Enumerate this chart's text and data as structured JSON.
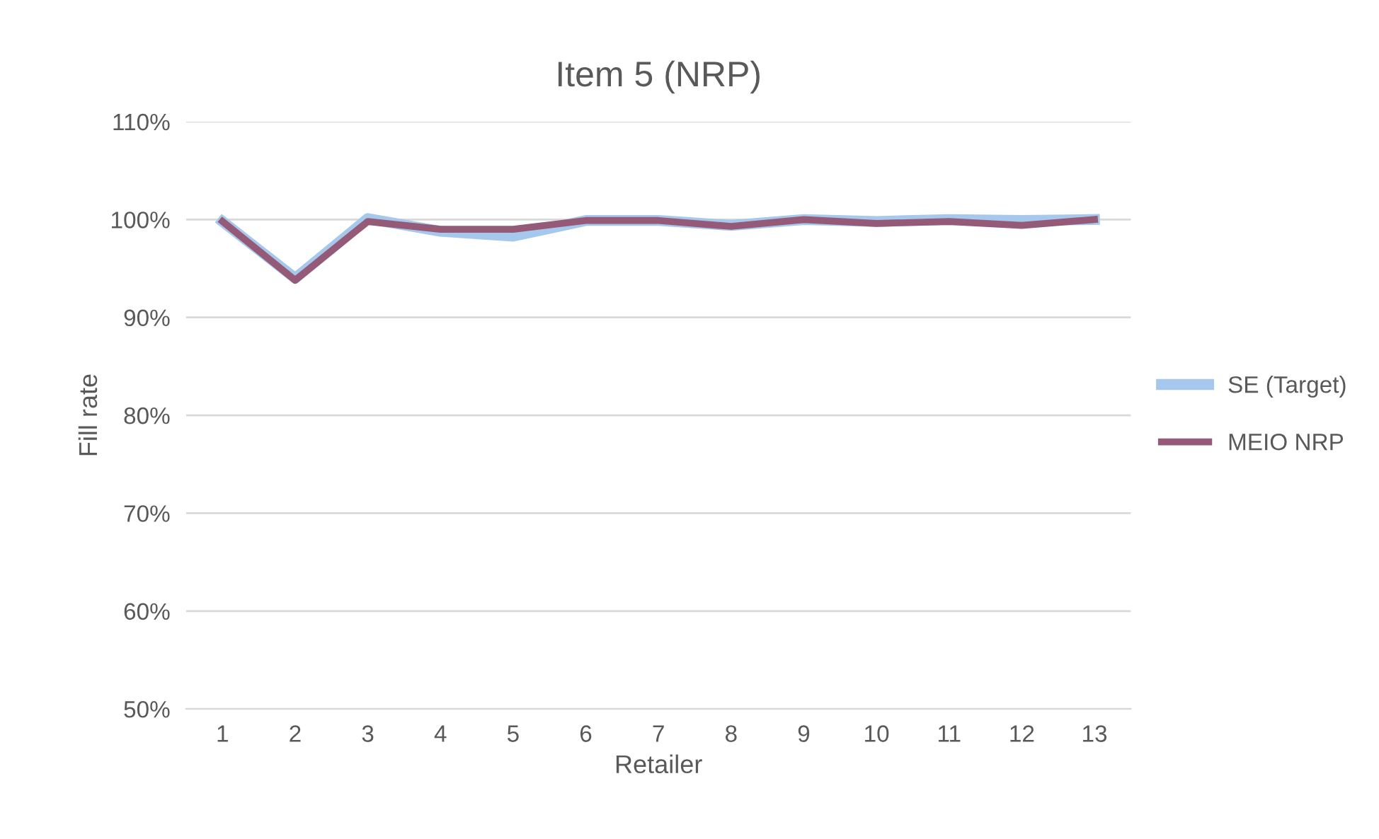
{
  "chart_data": {
    "type": "line",
    "title": "Item 5 (NRP)",
    "xlabel": "Retailer",
    "ylabel": "Fill rate",
    "categories": [
      "1",
      "2",
      "3",
      "4",
      "5",
      "6",
      "7",
      "8",
      "9",
      "10",
      "11",
      "12",
      "13"
    ],
    "series": [
      {
        "name": "SE (Target)",
        "color": "#a5c8ec",
        "values": [
          99.8,
          94.0,
          100.1,
          98.8,
          98.3,
          99.9,
          99.9,
          99.4,
          100.0,
          99.8,
          100.0,
          99.9,
          100.0
        ]
      },
      {
        "name": "MEIO NRP",
        "color": "#955a78",
        "values": [
          99.8,
          93.8,
          99.8,
          99.0,
          99.0,
          99.9,
          99.9,
          99.3,
          100.0,
          99.6,
          99.8,
          99.4,
          100.0
        ]
      }
    ],
    "ylim": [
      50,
      110
    ],
    "yticks": [
      {
        "value": 50,
        "label": "50%"
      },
      {
        "value": 60,
        "label": "60%"
      },
      {
        "value": 70,
        "label": "70%"
      },
      {
        "value": 80,
        "label": "80%"
      },
      {
        "value": 90,
        "label": "90%"
      },
      {
        "value": 100,
        "label": "100%"
      },
      {
        "value": 110,
        "label": "110%"
      }
    ],
    "grid": "y",
    "legend": "right",
    "marker": "none",
    "line_style": "solid"
  }
}
